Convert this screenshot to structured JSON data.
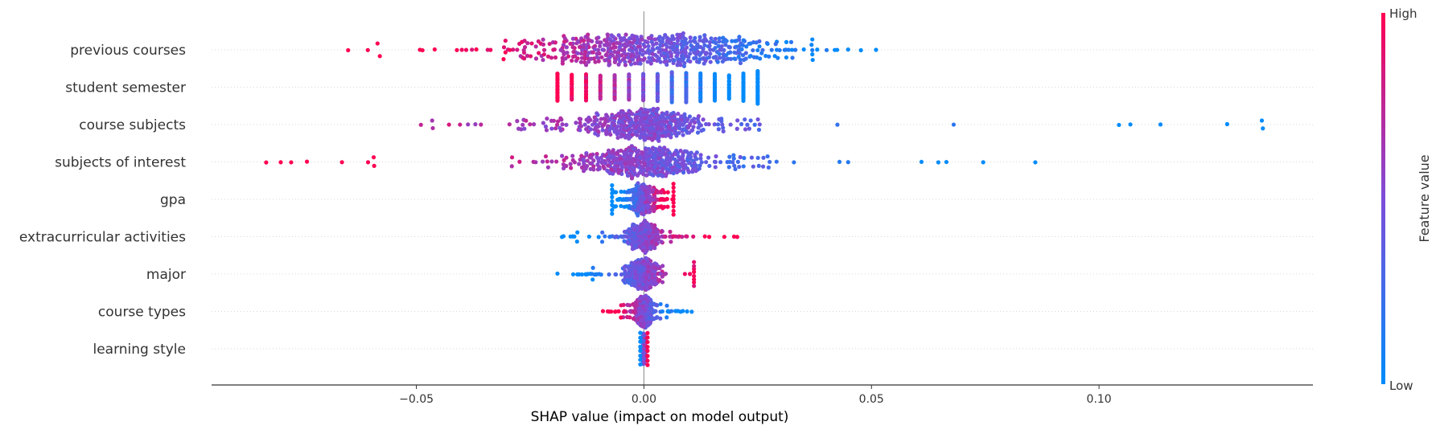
{
  "chart_data": {
    "type": "scatter",
    "subtype": "shap-beeswarm",
    "xlabel": "SHAP value (impact on model output)",
    "ylabel": "",
    "xlim": [
      -0.095,
      0.147
    ],
    "xticks": [
      {
        "value": -0.05,
        "label": "−0.05"
      },
      {
        "value": 0.0,
        "label": "0.00"
      },
      {
        "value": 0.05,
        "label": "0.05"
      },
      {
        "value": 0.1,
        "label": "0.10"
      }
    ],
    "grid": "horizontal dotted per feature row",
    "colorbar": {
      "label": "Feature value",
      "high_label": "High",
      "low_label": "Low",
      "high_color": "#ff0052",
      "low_color": "#008bfb"
    },
    "features": [
      {
        "name": "previous courses",
        "range": [
          -0.065,
          0.051
        ],
        "spread": 0.032,
        "bulk": [
          -0.04,
          0.037
        ],
        "direction": -1,
        "n": 520,
        "discrete": false
      },
      {
        "name": "student semester",
        "range": [
          -0.019,
          0.025
        ],
        "spread": 0.02,
        "bulk": [
          -0.019,
          0.025
        ],
        "direction": -1,
        "n": 280,
        "discrete": true
      },
      {
        "name": "course subjects",
        "range": [
          -0.049,
          0.136
        ],
        "spread": 0.014,
        "bulk": [
          -0.03,
          0.028
        ],
        "direction": -1,
        "n": 460,
        "discrete": false
      },
      {
        "name": "subjects of interest",
        "range": [
          -0.083,
          0.086
        ],
        "spread": 0.015,
        "bulk": [
          -0.03,
          0.03
        ],
        "direction": -1,
        "n": 460,
        "discrete": false
      },
      {
        "name": "gpa",
        "range": [
          -0.007,
          0.0065
        ],
        "spread": 0.004,
        "bulk": [
          -0.007,
          0.0065
        ],
        "direction": 1,
        "n": 300,
        "discrete": false
      },
      {
        "name": "extracurricular activities",
        "range": [
          -0.018,
          0.0205
        ],
        "spread": 0.004,
        "bulk": [
          -0.01,
          0.009
        ],
        "direction": 1,
        "n": 340,
        "discrete": false
      },
      {
        "name": "major",
        "range": [
          -0.019,
          0.011
        ],
        "spread": 0.004,
        "bulk": [
          -0.012,
          0.011
        ],
        "direction": 1,
        "n": 300,
        "discrete": false
      },
      {
        "name": "course types",
        "range": [
          -0.009,
          0.0105
        ],
        "spread": 0.0025,
        "bulk": [
          -0.005,
          0.006
        ],
        "direction": -1,
        "n": 280,
        "discrete": false
      },
      {
        "name": "learning style",
        "range": [
          -0.0008,
          0.0008
        ],
        "spread": 0.0004,
        "bulk": [
          -0.0008,
          0.0008
        ],
        "direction": 1,
        "n": 200,
        "discrete": false
      }
    ]
  }
}
